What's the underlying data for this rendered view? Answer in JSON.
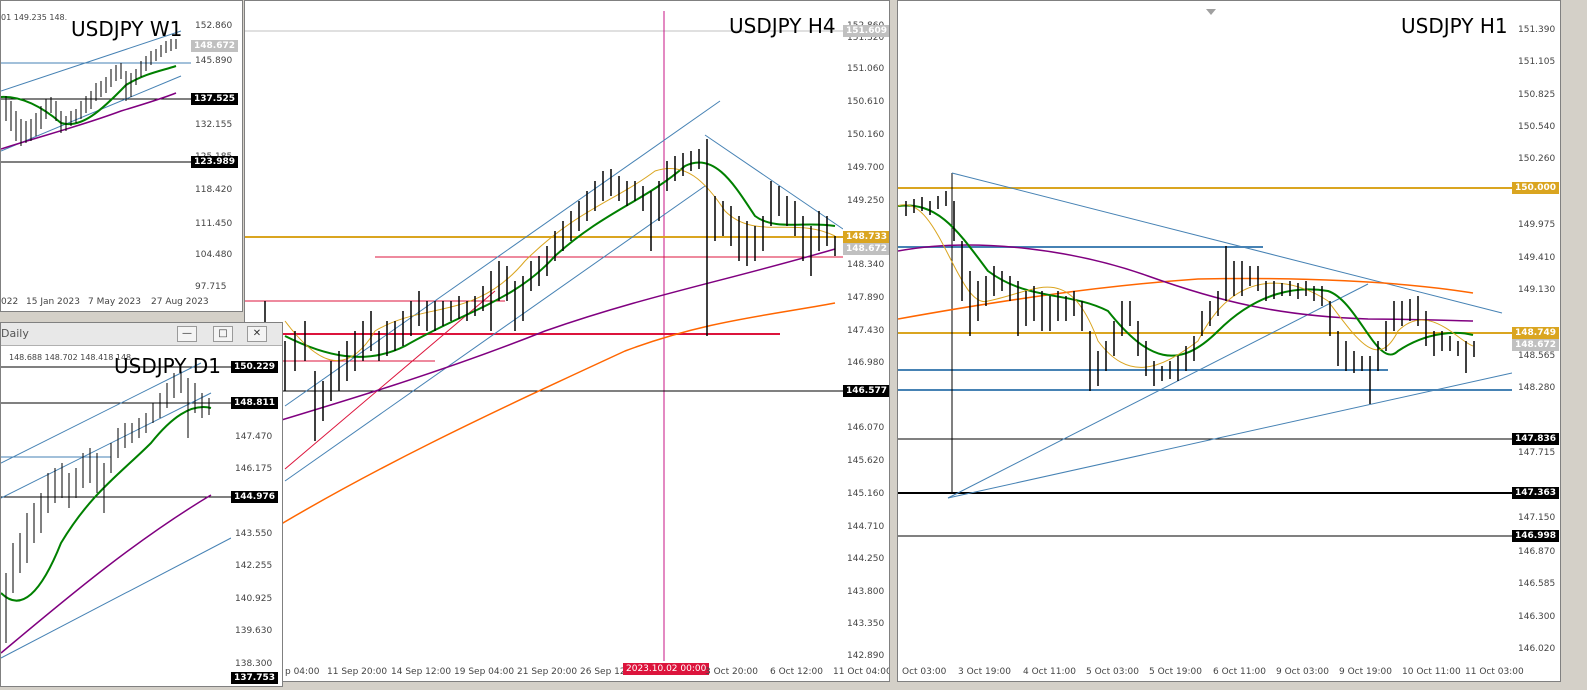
{
  "w1": {
    "title": "USDJPY W1",
    "ohlc": "01  149.235 148.",
    "yticks": [
      "152.860",
      "145.890",
      "132.155",
      "125.185",
      "118.420",
      "111.450",
      "104.480",
      "97.715"
    ],
    "xticks": [
      "022",
      "15 Jan 2023",
      "7 May 2023",
      "27 Aug 2023"
    ],
    "tags": {
      "last": "148.672",
      "a": "137.525",
      "b": "123.989"
    }
  },
  "d1": {
    "window_label": "Daily",
    "title": "USDJPY D1",
    "ohlc": "148.688 148.702 148.418 148.",
    "yticks": [
      "147.470",
      "146.175",
      "143.550",
      "142.255",
      "140.925",
      "139.630",
      "138.300"
    ],
    "tags": {
      "a": "150.229",
      "b": "148.811",
      "c": "144.976",
      "d": "137.753"
    }
  },
  "h4": {
    "title": "USDJPY H4",
    "yticks": [
      "152.860",
      "151.320",
      "151.060",
      "150.610",
      "150.160",
      "149.700",
      "149.250",
      "148.340",
      "147.890",
      "147.430",
      "146.980",
      "146.070",
      "145.620",
      "145.160",
      "144.710",
      "144.250",
      "143.800",
      "143.350",
      "142.890"
    ],
    "xticks": [
      "p 04:00",
      "11 Sep 20:00",
      "14 Sep 12:00",
      "19 Sep 04:00",
      "21 Sep 20:00",
      "26 Sep 12",
      "3 Oct 20:00",
      "6 Oct 12:00",
      "11 Oct 04:00"
    ],
    "crosshair_label": "2023.10.02 00:00",
    "tags": {
      "top": "151.609",
      "orange": "148.733",
      "last": "148.672",
      "black": "146.577"
    }
  },
  "h1": {
    "title": "USDJPY H1",
    "yticks": [
      "151.390",
      "151.105",
      "150.825",
      "150.540",
      "150.260",
      "149.975",
      "149.410",
      "149.130",
      "148.565",
      "148.280",
      "147.715",
      "147.150",
      "146.870",
      "146.585",
      "146.300",
      "146.020"
    ],
    "xticks": [
      "Oct 03:00",
      "3 Oct 19:00",
      "4 Oct 11:00",
      "5 Oct 03:00",
      "5 Oct 19:00",
      "6 Oct 11:00",
      "9 Oct 03:00",
      "9 Oct 19:00",
      "10 Oct 11:00",
      "11 Oct 03:00"
    ],
    "tags": {
      "a": "150.000",
      "b": "148.749",
      "last": "148.672",
      "c": "147.836",
      "d": "147.363",
      "e": "146.998"
    }
  },
  "colors": {
    "ma_green": "#008000",
    "ma_purple": "#800080",
    "ma_orange": "#ff6600",
    "orange_line": "#daa520",
    "trend_blue": "#4682b4",
    "red_line": "#dc143c",
    "crosshair": "#c71585"
  }
}
